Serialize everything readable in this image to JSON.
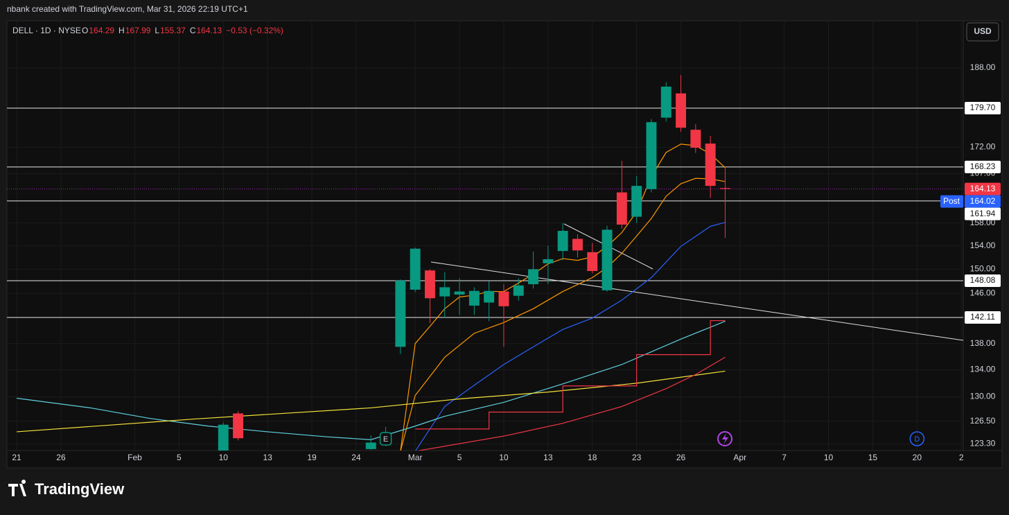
{
  "header": {
    "caption": "nbank created with TradingView.com, Mar 31, 2026 22:19 UTC+1"
  },
  "footer": {
    "brand": "TradingView"
  },
  "chart_data": {
    "type": "candlestick",
    "symbol": "DELL · 1D · NYSE",
    "ohlc_letters": [
      "O",
      "H",
      "L",
      "C"
    ],
    "change": "−0.53 (−0.32%)",
    "currency": "USD",
    "up_color": "#089981",
    "down_color": "#f23645",
    "x": [
      14,
      15,
      24,
      25,
      26,
      27,
      28,
      29,
      30,
      31,
      32,
      33,
      34,
      35,
      36,
      37,
      38,
      39,
      40,
      41,
      42,
      43,
      44,
      45,
      46,
      47,
      48
    ],
    "open": [
      121.8,
      127.6,
      122.6,
      123.8,
      137.5,
      146.6,
      149.8,
      145.5,
      145.8,
      144.0,
      144.5,
      146.3,
      145.6,
      147.5,
      151.0,
      153.1,
      155.2,
      152.9,
      146.5,
      163.5,
      159.1,
      164.1,
      177.8,
      182.7,
      175.4,
      172.7,
      164.29
    ],
    "high": [
      126.3,
      127.9,
      124.5,
      125.7,
      148.3,
      153.7,
      150.0,
      149.5,
      148.5,
      147.0,
      148.0,
      147.5,
      148.5,
      153.0,
      154.0,
      158.0,
      156.0,
      154.5,
      157.5,
      169.4,
      166.5,
      177.5,
      185.0,
      186.5,
      176.5,
      174.2,
      167.99
    ],
    "low": [
      121.0,
      123.8,
      122.5,
      123.0,
      136.4,
      146.2,
      141.2,
      142.0,
      142.5,
      142.5,
      141.5,
      137.5,
      144.8,
      146.8,
      147.5,
      151.5,
      152.0,
      149.3,
      146.3,
      157.0,
      158.0,
      163.5,
      177.0,
      175.0,
      170.9,
      162.5,
      155.37
    ],
    "close": [
      126.0,
      124.1,
      123.5,
      124.6,
      148.1,
      153.5,
      145.2,
      147.0,
      146.3,
      146.4,
      146.4,
      143.9,
      147.3,
      150.0,
      151.7,
      156.6,
      153.2,
      149.7,
      156.8,
      157.7,
      164.7,
      176.9,
      184.1,
      175.8,
      171.9,
      164.7,
      164.13
    ],
    "xlim": [
      -0.66,
      64.13
    ],
    "xticks": [
      {
        "value": 0,
        "label": "21"
      },
      {
        "value": 3,
        "label": "26"
      },
      {
        "value": 8,
        "label": "Feb"
      },
      {
        "value": 11,
        "label": "5"
      },
      {
        "value": 14,
        "label": "10"
      },
      {
        "value": 17,
        "label": "13"
      },
      {
        "value": 20,
        "label": "19"
      },
      {
        "value": 23,
        "label": "24"
      },
      {
        "value": 27,
        "label": "Mar"
      },
      {
        "value": 30,
        "label": "5"
      },
      {
        "value": 33,
        "label": "10"
      },
      {
        "value": 36,
        "label": "13"
      },
      {
        "value": 39,
        "label": "18"
      },
      {
        "value": 42,
        "label": "23"
      },
      {
        "value": 45,
        "label": "26"
      },
      {
        "value": 49,
        "label": "Apr"
      },
      {
        "value": 52,
        "label": "7"
      },
      {
        "value": 55,
        "label": "10"
      },
      {
        "value": 58,
        "label": "15"
      },
      {
        "value": 61,
        "label": "20"
      },
      {
        "value": 64,
        "label": "2"
      }
    ],
    "ylim": [
      122.4,
      198.2
    ],
    "log_scale": true,
    "grid": true,
    "yticks": [
      {
        "value": 188,
        "label": "188.00"
      },
      {
        "value": 172,
        "label": "172.00"
      },
      {
        "value": 167,
        "label": "167.00"
      },
      {
        "value": 158,
        "label": "158.00"
      },
      {
        "value": 154,
        "label": "154.00"
      },
      {
        "value": 150,
        "label": "150.00"
      },
      {
        "value": 146,
        "label": "146.00"
      },
      {
        "value": 138,
        "label": "138.00"
      },
      {
        "value": 134,
        "label": "134.00"
      },
      {
        "value": 130,
        "label": "130.00"
      },
      {
        "value": 126.5,
        "label": "126.50"
      },
      {
        "value": 123.3,
        "label": "123.30"
      }
    ],
    "lines": [
      {
        "color": "#ff9800",
        "x": [
          26,
          27,
          28,
          29,
          30,
          31,
          32,
          33,
          34,
          35,
          36,
          37,
          38,
          39,
          40,
          41,
          42,
          43,
          44,
          45,
          46,
          47,
          48
        ],
        "values": [
          122.3,
          138.0,
          140.7,
          143.5,
          145.4,
          145.7,
          146.3,
          146.3,
          147.7,
          149.2,
          150.9,
          151.8,
          151.5,
          152.1,
          153.9,
          156.3,
          160.0,
          166.4,
          171.0,
          172.6,
          172.3,
          170.7,
          168.1
        ]
      },
      {
        "color": "#ff9800",
        "x": [
          26,
          27,
          29,
          31,
          33,
          35,
          37,
          39,
          40,
          41,
          42,
          43,
          44,
          45,
          46,
          47,
          48
        ],
        "values": [
          122.3,
          130.2,
          135.9,
          139.6,
          141.3,
          143.5,
          146.3,
          148.6,
          150.3,
          152.7,
          155.7,
          158.8,
          162.8,
          165.1,
          166.1,
          166.0,
          165.5
        ]
      },
      {
        "color": "#2962ff",
        "x": [
          27,
          29,
          31,
          33,
          35,
          37,
          39,
          41,
          43,
          45,
          47,
          48
        ],
        "values": [
          122.3,
          128.6,
          131.7,
          134.8,
          137.5,
          140.2,
          142.0,
          144.9,
          148.6,
          153.9,
          157.4,
          158.1
        ]
      },
      {
        "color": "#5fd1e0",
        "x": [
          0,
          5,
          9,
          13,
          17,
          21,
          24,
          27,
          29,
          33,
          37,
          41,
          45,
          48
        ],
        "values": [
          129.8,
          128.4,
          126.9,
          125.8,
          125.0,
          124.3,
          123.9,
          125.8,
          127.2,
          129.2,
          131.9,
          134.8,
          138.7,
          141.5
        ]
      },
      {
        "color": "#f5e23a",
        "x": [
          0,
          12,
          24,
          30,
          36,
          42,
          48
        ],
        "values": [
          125.0,
          126.8,
          128.4,
          129.7,
          130.7,
          132.0,
          133.8
        ]
      },
      {
        "color": "#f23645",
        "x": [
          27,
          33,
          37,
          41,
          44,
          46,
          48
        ],
        "values": [
          122.3,
          124.4,
          126.2,
          128.6,
          131.2,
          133.3,
          135.9
        ]
      },
      {
        "color": "#f23645",
        "step": true,
        "x": [
          27,
          28,
          29,
          30,
          31,
          32,
          33,
          34,
          35,
          36,
          37,
          38,
          39,
          40,
          41,
          42,
          43,
          44,
          45,
          46,
          47,
          48
        ],
        "values": [
          125.4,
          125.4,
          125.4,
          125.4,
          125.4,
          127.8,
          127.8,
          127.8,
          127.8,
          127.8,
          131.6,
          131.6,
          131.6,
          131.6,
          131.6,
          136.3,
          136.3,
          136.3,
          136.3,
          136.3,
          141.6,
          141.6
        ]
      }
    ],
    "levels": [
      {
        "value": 179.7,
        "label": "179.70"
      },
      {
        "value": 168.23,
        "label": "168.23"
      },
      {
        "value": 161.94,
        "label": "161.94"
      },
      {
        "value": 148.08,
        "label": "148.08"
      },
      {
        "value": 142.11,
        "label": "142.11"
      }
    ],
    "last_price": {
      "value": 164.13,
      "label": "164.13",
      "color": "#f23645"
    },
    "post_price": {
      "name": "Post",
      "value": 164.02,
      "label": "164.02",
      "color": "#2962ff"
    },
    "markers": [
      {
        "label": "E",
        "x": 25,
        "color": "#089981"
      },
      {
        "label": "D",
        "x": 61,
        "color": "#2962ff"
      }
    ]
  }
}
